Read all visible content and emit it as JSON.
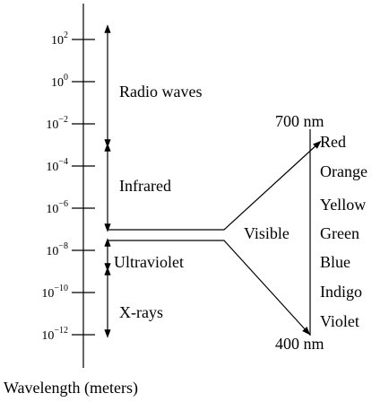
{
  "axis": {
    "label": "Wavelength (meters)",
    "ticks": [
      {
        "base": "10",
        "exponent": "2"
      },
      {
        "base": "10",
        "exponent": "0"
      },
      {
        "base": "10",
        "exponent": "−2"
      },
      {
        "base": "10",
        "exponent": "−4"
      },
      {
        "base": "10",
        "exponent": "−6"
      },
      {
        "base": "10",
        "exponent": "−8"
      },
      {
        "base": "10",
        "exponent": "−10"
      },
      {
        "base": "10",
        "exponent": "−12"
      }
    ]
  },
  "bands": [
    {
      "label": "Radio waves"
    },
    {
      "label": "Infrared"
    },
    {
      "label": "Ultraviolet"
    },
    {
      "label": "X-rays"
    }
  ],
  "visible": {
    "label": "Visible",
    "upper": "700 nm",
    "lower": "400 nm",
    "colors": [
      "Red",
      "Orange",
      "Yellow",
      "Green",
      "Blue",
      "Indigo",
      "Violet"
    ]
  }
}
